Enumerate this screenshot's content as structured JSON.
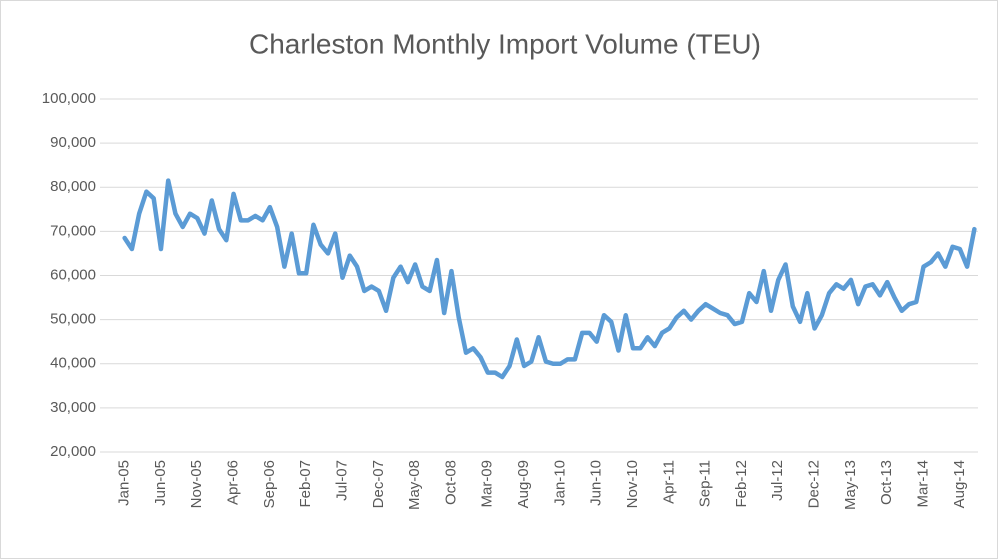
{
  "chart_data": {
    "type": "line",
    "title": "Charleston Monthly Import Volume (TEU)",
    "categories": [
      "Jan-05",
      null,
      null,
      null,
      null,
      "Jun-05",
      null,
      null,
      null,
      null,
      "Nov-05",
      null,
      null,
      null,
      null,
      "Apr-06",
      null,
      null,
      null,
      null,
      "Sep-06",
      null,
      null,
      null,
      null,
      "Feb-07",
      null,
      null,
      null,
      null,
      "Jul-07",
      null,
      null,
      null,
      null,
      "Dec-07",
      null,
      null,
      null,
      null,
      "May-08",
      null,
      null,
      null,
      null,
      "Oct-08",
      null,
      null,
      null,
      null,
      "Mar-09",
      null,
      null,
      null,
      null,
      "Aug-09",
      null,
      null,
      null,
      null,
      "Jan-10",
      null,
      null,
      null,
      null,
      "Jun-10",
      null,
      null,
      null,
      null,
      "Nov-10",
      null,
      null,
      null,
      null,
      "Apr-11",
      null,
      null,
      null,
      null,
      "Sep-11",
      null,
      null,
      null,
      null,
      "Feb-12",
      null,
      null,
      null,
      null,
      "Jul-12",
      null,
      null,
      null,
      null,
      "Dec-12",
      null,
      null,
      null,
      null,
      "May-13",
      null,
      null,
      null,
      null,
      "Oct-13",
      null,
      null,
      null,
      null,
      "Mar-14",
      null,
      null,
      null,
      null,
      "Aug-14",
      null,
      null
    ],
    "series": [
      {
        "color": "#5b9bd5",
        "values": [
          68500,
          66000,
          74000,
          79000,
          77500,
          66000,
          81500,
          74000,
          71000,
          74000,
          73000,
          69500,
          77000,
          70500,
          68000,
          78500,
          72500,
          72500,
          73500,
          72500,
          75500,
          71000,
          62000,
          69500,
          60500,
          60500,
          71500,
          67000,
          65000,
          69500,
          59500,
          64500,
          62000,
          56500,
          57500,
          56500,
          52000,
          59500,
          62000,
          58500,
          62500,
          57500,
          56500,
          63500,
          51500,
          61000,
          50500,
          42500,
          43500,
          41500,
          38000,
          38000,
          37000,
          39500,
          45500,
          39500,
          40500,
          46000,
          40500,
          40000,
          40000,
          41000,
          41000,
          47000,
          47000,
          45000,
          51000,
          49500,
          43000,
          51000,
          43500,
          43500,
          46000,
          44000,
          47000,
          48000,
          50500,
          52000,
          50000,
          52000,
          53500,
          52500,
          51500,
          51000,
          49000,
          49500,
          56000,
          54000,
          61000,
          52000,
          59000,
          62500,
          53000,
          49500,
          56000,
          48000,
          51000,
          56000,
          58000,
          57000,
          59000,
          53500,
          57500,
          58000,
          55500,
          58500,
          55000,
          52000,
          53500,
          54000,
          62000,
          63000,
          65000,
          62000,
          66500,
          66000,
          62000,
          70500
        ]
      }
    ],
    "ylim": [
      20000,
      100000
    ],
    "yticks": [
      {
        "value": 20000,
        "label": "20,000"
      },
      {
        "value": 30000,
        "label": "30,000"
      },
      {
        "value": 40000,
        "label": "40,000"
      },
      {
        "value": 50000,
        "label": "50,000"
      },
      {
        "value": 60000,
        "label": "60,000"
      },
      {
        "value": 70000,
        "label": "70,000"
      },
      {
        "value": 80000,
        "label": "80,000"
      },
      {
        "value": 90000,
        "label": "90,000"
      },
      {
        "value": 100000,
        "label": "100,000"
      }
    ],
    "grid": true
  }
}
